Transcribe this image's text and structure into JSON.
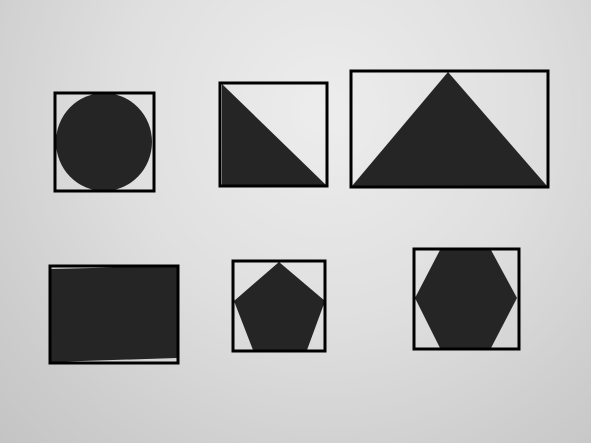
{
  "image": {
    "background_color": "#d9d9d9",
    "shape_color": "#252525",
    "box_color": "#000000",
    "shapes": [
      {
        "kind": "circle",
        "bounded": true
      },
      {
        "kind": "right-triangle",
        "bounded": true
      },
      {
        "kind": "isosceles-triangle",
        "bounded": true
      },
      {
        "kind": "rectangle",
        "bounded": true
      },
      {
        "kind": "pentagon",
        "bounded": true
      },
      {
        "kind": "hexagon",
        "bounded": true
      }
    ]
  }
}
